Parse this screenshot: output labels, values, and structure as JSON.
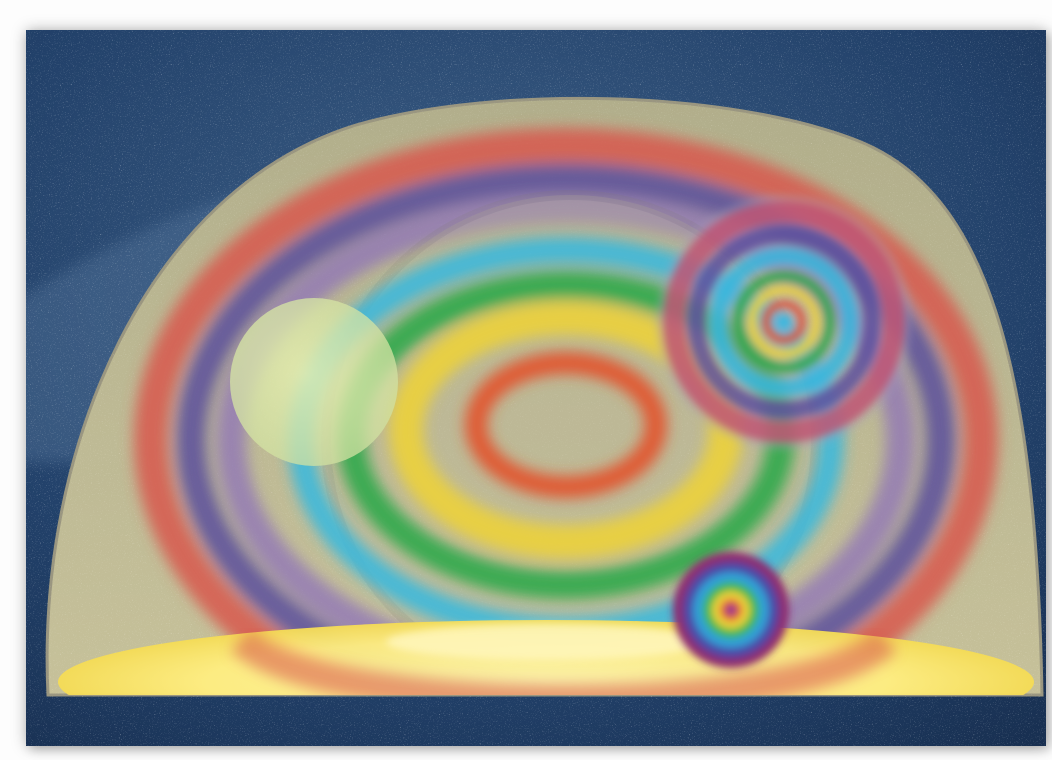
{
  "artwork": {
    "subject": "rainbow-rings-dome-starfield",
    "palette": {
      "sky": "#1e3a5a",
      "sky_light": "#3b5b7e",
      "dome": "#c9c39a",
      "floor": "#ffef7a",
      "ring_red": "#d8584e",
      "ring_purple": "#5a4c9c",
      "ring_violet": "#8e72b8",
      "ring_cyan": "#34b8e0",
      "ring_green": "#2fa84a",
      "ring_yellow": "#ecd23a",
      "ring_orange": "#e2552e",
      "pale_circle": "#d9e6a0"
    }
  }
}
